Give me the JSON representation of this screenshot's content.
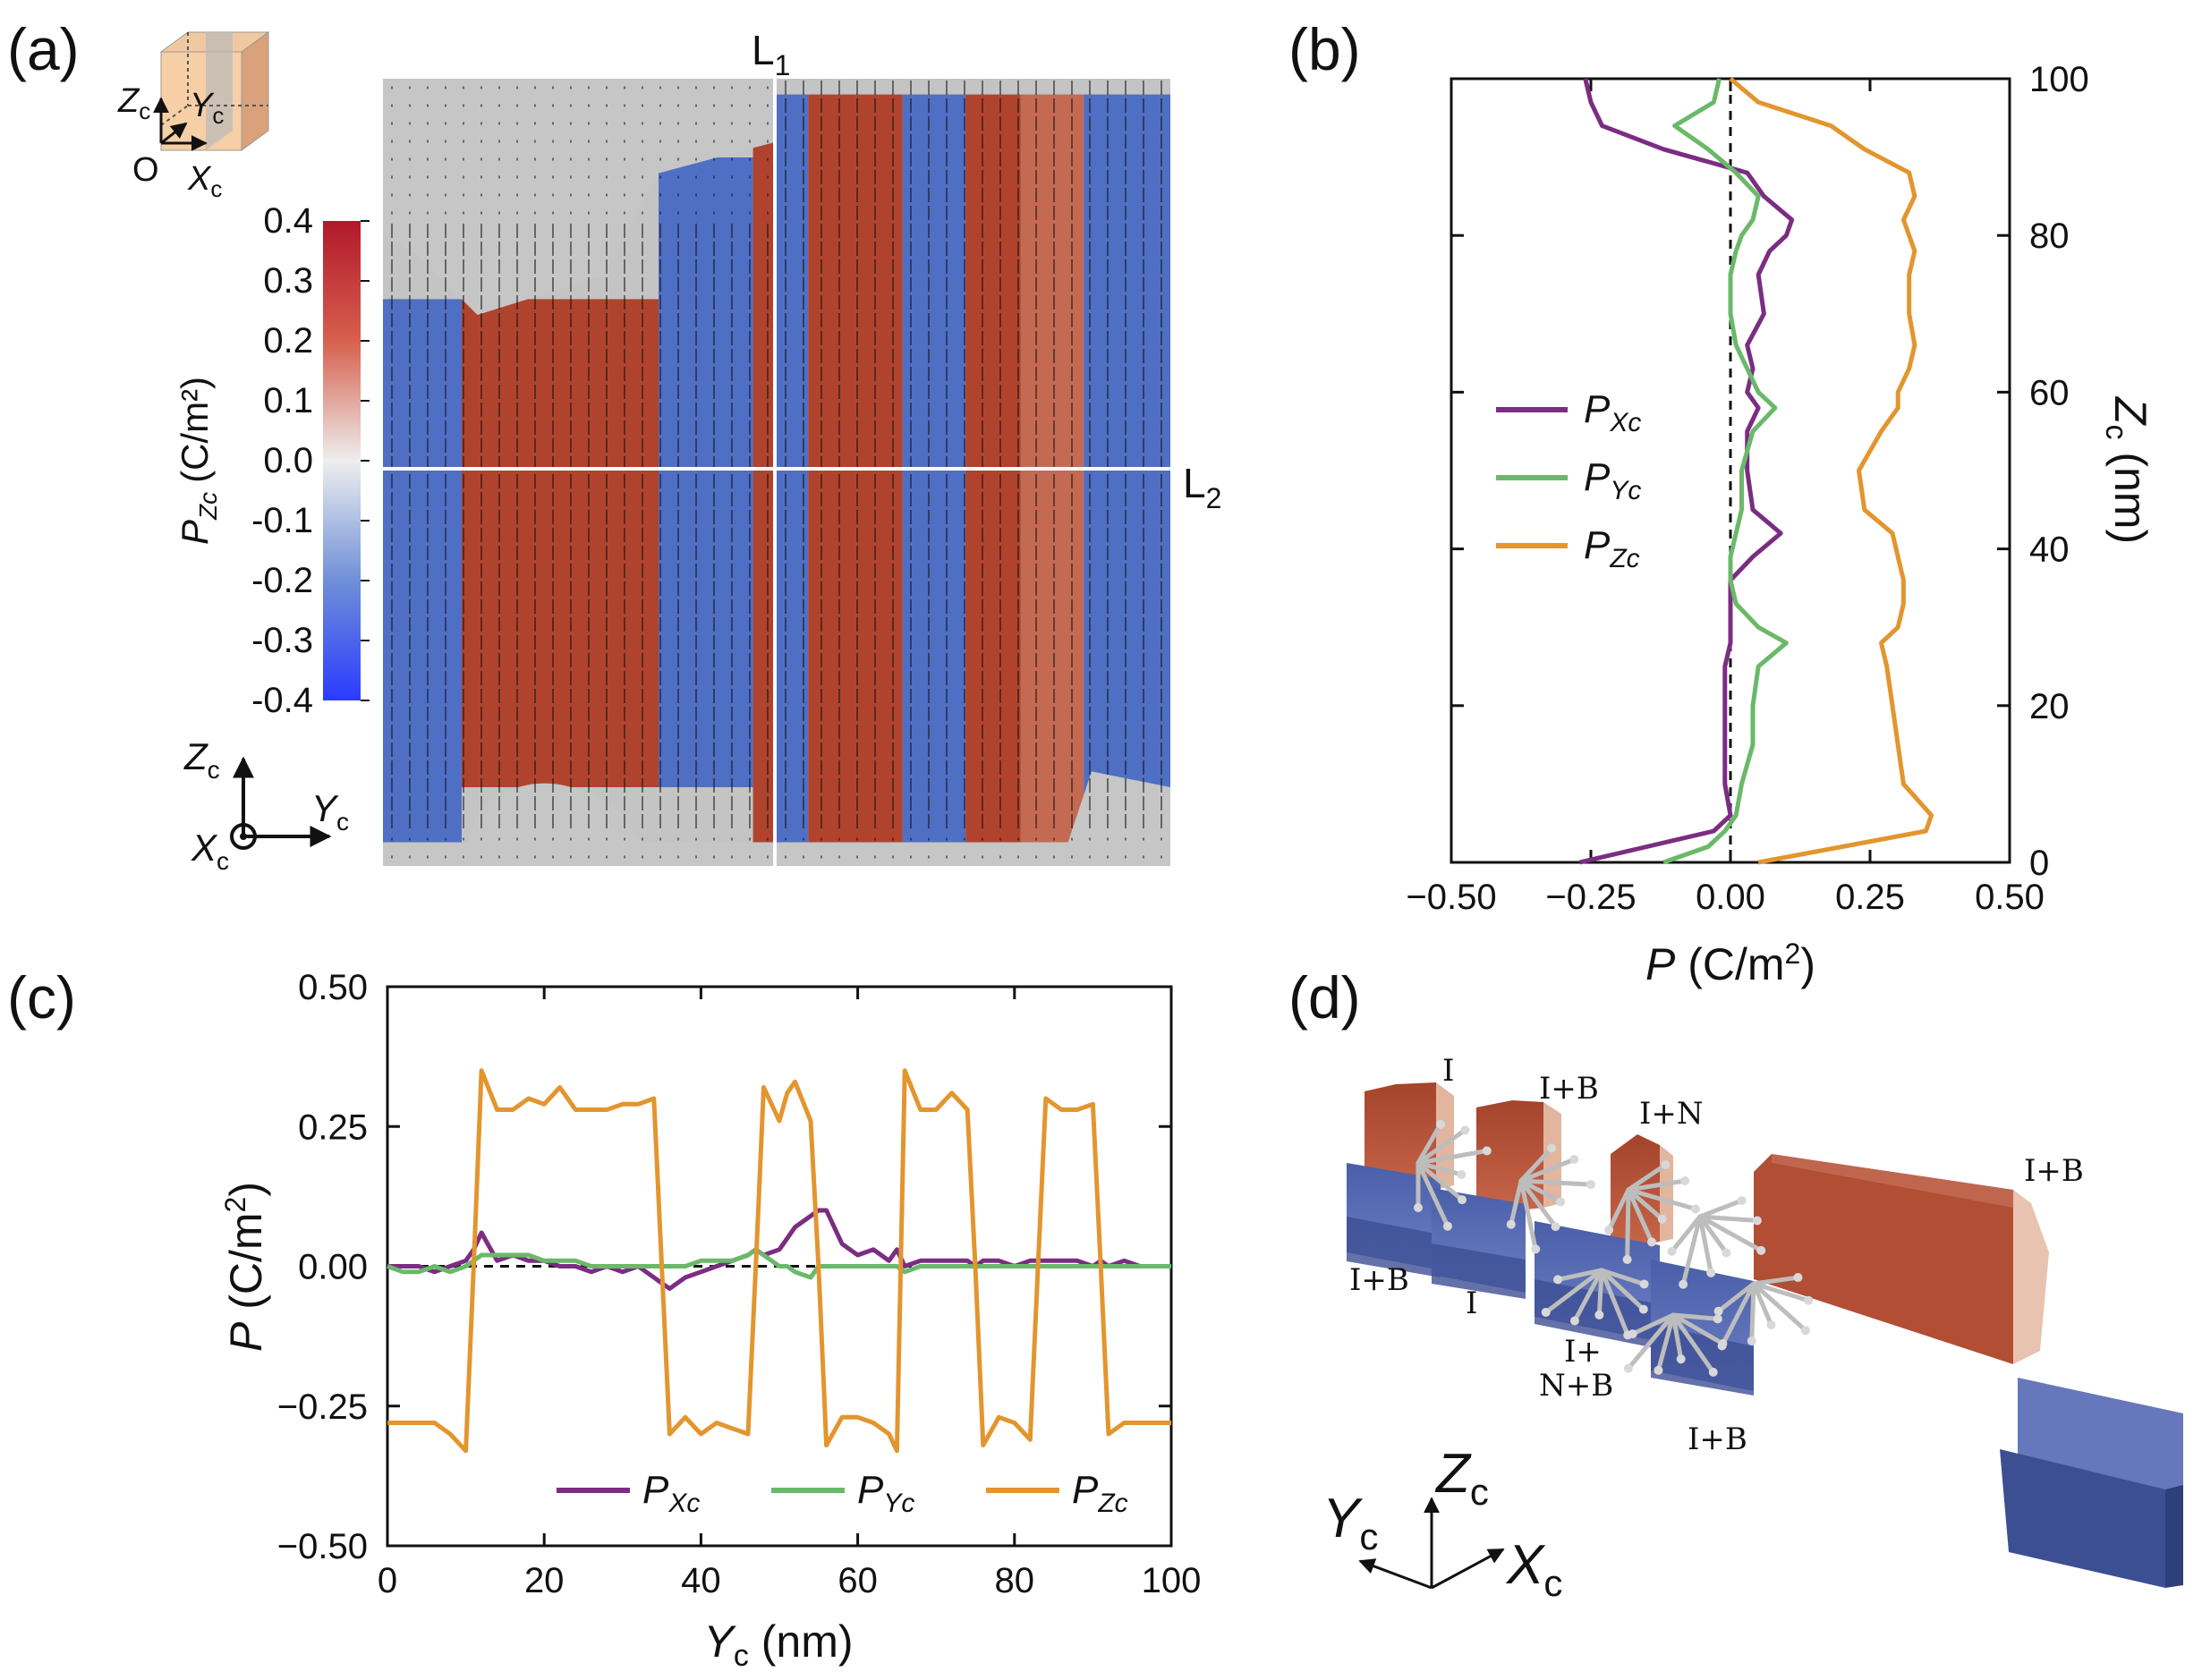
{
  "panels": {
    "a": "(a)",
    "b": "(b)",
    "c": "(c)",
    "d": "(d)"
  },
  "colors": {
    "px": "#7b2d82",
    "py": "#6ab96a",
    "pz": "#e3952e",
    "red": "#b0432d",
    "blue": "#4f6fc4",
    "gray": "#c6c6c6"
  },
  "panel_a": {
    "line1": "L",
    "line1_sub": "1",
    "line2": "L",
    "line2_sub": "2",
    "colorbar": {
      "label": "P",
      "label_sub": "Zc",
      "label_unit": "(C/m²)",
      "ticks": [
        "0.4",
        "0.3",
        "0.2",
        "0.1",
        "0.0",
        "-0.1",
        "-0.2",
        "-0.3",
        "-0.4"
      ],
      "range": [
        -0.4,
        0.4
      ]
    },
    "inset_axes": {
      "z": "Z",
      "y": "Y",
      "x": "X",
      "sub": "c",
      "origin": "O"
    },
    "bottom_axes": {
      "z": "Z",
      "y": "Y",
      "x": "X",
      "sub": "c"
    },
    "stripes_nm": [
      {
        "from": 0,
        "to": 10,
        "sign": -1
      },
      {
        "from": 10,
        "to": 35,
        "sign": 1
      },
      {
        "from": 35,
        "to": 47,
        "sign": -1
      },
      {
        "from": 47,
        "to": 50,
        "sign": 1
      },
      {
        "from": 50,
        "to": 54,
        "sign": -1
      },
      {
        "from": 54,
        "to": 66,
        "sign": 1
      },
      {
        "from": 66,
        "to": 74,
        "sign": -1
      },
      {
        "from": 74,
        "to": 81,
        "sign": 1
      },
      {
        "from": 81,
        "to": 89,
        "sign": 0.6
      },
      {
        "from": 89,
        "to": 100,
        "sign": -1
      }
    ]
  },
  "chart_data": [
    {
      "id": "b",
      "type": "line",
      "xlabel": "P (C/m²)",
      "ylabel": "Zc (nm)",
      "xlim": [
        -0.5,
        0.5
      ],
      "ylim": [
        0,
        100
      ],
      "xticks": [
        "−0.50",
        "−0.25",
        "0.00",
        "0.25",
        "0.50"
      ],
      "yticks": [
        "0",
        "20",
        "40",
        "60",
        "80",
        "100"
      ],
      "reference_line": "x = 0 dashed",
      "y": [
        0,
        2,
        4,
        6,
        10,
        15,
        20,
        25,
        28,
        30,
        33,
        36,
        39,
        42,
        45,
        50,
        55,
        58,
        60,
        63,
        66,
        70,
        75,
        78,
        80,
        82,
        85,
        88,
        91,
        94,
        97,
        100
      ],
      "series": [
        {
          "name": "PXc",
          "label": "P",
          "sub": "Xc",
          "values": [
            -0.27,
            -0.15,
            -0.03,
            0.0,
            -0.01,
            -0.01,
            -0.01,
            -0.01,
            0.0,
            0.0,
            0.0,
            0.0,
            0.04,
            0.09,
            0.04,
            0.03,
            0.03,
            0.05,
            0.03,
            0.04,
            0.03,
            0.06,
            0.05,
            0.07,
            0.1,
            0.11,
            0.06,
            0.03,
            -0.12,
            -0.23,
            -0.25,
            -0.26
          ]
        },
        {
          "name": "PYc",
          "label": "P",
          "sub": "Yc",
          "values": [
            -0.12,
            -0.04,
            -0.01,
            0.01,
            0.02,
            0.04,
            0.04,
            0.05,
            0.1,
            0.05,
            0.01,
            0.0,
            0.0,
            0.01,
            0.02,
            0.02,
            0.04,
            0.08,
            0.05,
            0.03,
            0.01,
            0.0,
            0.0,
            0.01,
            0.02,
            0.04,
            0.05,
            0.01,
            -0.04,
            -0.1,
            -0.03,
            -0.02
          ]
        },
        {
          "name": "PZc",
          "label": "P",
          "sub": "Zc",
          "values": [
            0.05,
            0.2,
            0.35,
            0.36,
            0.31,
            0.3,
            0.29,
            0.28,
            0.27,
            0.3,
            0.31,
            0.31,
            0.3,
            0.29,
            0.24,
            0.23,
            0.27,
            0.3,
            0.3,
            0.32,
            0.33,
            0.32,
            0.32,
            0.33,
            0.32,
            0.31,
            0.33,
            0.32,
            0.24,
            0.18,
            0.05,
            0.0
          ]
        }
      ]
    },
    {
      "id": "c",
      "type": "line",
      "xlabel": "Yc (nm)",
      "ylabel": "P (C/m²)",
      "xlim": [
        0,
        100
      ],
      "ylim": [
        -0.5,
        0.5
      ],
      "xticks": [
        "0",
        "20",
        "40",
        "60",
        "80",
        "100"
      ],
      "yticks": [
        "0.50",
        "0.25",
        "0.00",
        "−0.25",
        "−0.50"
      ],
      "reference_line": "y = 0 dashed",
      "x": [
        0,
        2,
        4,
        6,
        8,
        10,
        11,
        12,
        14,
        16,
        18,
        20,
        22,
        24,
        26,
        28,
        30,
        32,
        34,
        35,
        36,
        38,
        40,
        42,
        44,
        46,
        47,
        48,
        50,
        51,
        52,
        54,
        55,
        56,
        58,
        60,
        62,
        64,
        65,
        66,
        68,
        70,
        72,
        74,
        75,
        76,
        78,
        80,
        82,
        83,
        84,
        86,
        88,
        90,
        91,
        92,
        94,
        96,
        98,
        100
      ],
      "series": [
        {
          "name": "PXc",
          "label": "P",
          "sub": "Xc",
          "values": [
            0.0,
            0.0,
            0.0,
            -0.01,
            0.0,
            0.01,
            0.03,
            0.06,
            0.01,
            0.02,
            0.01,
            0.01,
            0.0,
            0.0,
            -0.01,
            0.0,
            -0.01,
            0.0,
            -0.02,
            -0.03,
            -0.04,
            -0.02,
            -0.01,
            0.0,
            0.01,
            0.02,
            0.03,
            0.02,
            0.03,
            0.05,
            0.07,
            0.09,
            0.1,
            0.1,
            0.04,
            0.02,
            0.03,
            0.01,
            0.03,
            0.0,
            0.01,
            0.01,
            0.01,
            0.01,
            0.0,
            0.01,
            0.01,
            0.0,
            0.01,
            0.01,
            0.01,
            0.01,
            0.01,
            0.0,
            0.01,
            0.0,
            0.01,
            0.0,
            0.0,
            0.0
          ]
        },
        {
          "name": "PYc",
          "label": "P",
          "sub": "Yc",
          "values": [
            0.0,
            -0.01,
            -0.01,
            0.0,
            -0.01,
            0.0,
            0.01,
            0.02,
            0.02,
            0.02,
            0.02,
            0.01,
            0.01,
            0.01,
            0.0,
            0.0,
            0.0,
            0.0,
            0.0,
            0.0,
            0.0,
            0.0,
            0.01,
            0.01,
            0.01,
            0.02,
            0.03,
            0.02,
            0.0,
            0.0,
            -0.01,
            -0.02,
            0.0,
            0.0,
            0.0,
            0.0,
            0.0,
            0.0,
            0.0,
            -0.01,
            0.0,
            0.0,
            0.0,
            0.0,
            0.0,
            0.0,
            0.0,
            0.0,
            0.0,
            0.0,
            0.0,
            0.0,
            0.0,
            0.0,
            0.0,
            0.0,
            0.0,
            0.0,
            0.0,
            0.0
          ]
        },
        {
          "name": "PZc",
          "label": "P",
          "sub": "Zc",
          "values": [
            -0.28,
            -0.28,
            -0.28,
            -0.28,
            -0.3,
            -0.33,
            0.0,
            0.35,
            0.28,
            0.28,
            0.3,
            0.29,
            0.32,
            0.28,
            0.28,
            0.28,
            0.29,
            0.29,
            0.3,
            0.0,
            -0.3,
            -0.27,
            -0.3,
            -0.28,
            -0.29,
            -0.3,
            0.0,
            0.32,
            0.26,
            0.31,
            0.33,
            0.26,
            0.0,
            -0.32,
            -0.27,
            -0.27,
            -0.28,
            -0.3,
            -0.33,
            0.35,
            0.28,
            0.28,
            0.31,
            0.28,
            0.0,
            -0.32,
            -0.27,
            -0.28,
            -0.31,
            0.0,
            0.3,
            0.28,
            0.28,
            0.29,
            0.0,
            -0.3,
            -0.28,
            -0.28,
            -0.28,
            -0.28
          ]
        }
      ]
    }
  ],
  "panel_d": {
    "labels": [
      "I",
      "I+B",
      "I+N",
      "I+B",
      "I+B",
      "I",
      "I+",
      "N+B",
      "I+B"
    ],
    "axes": {
      "z": "Z",
      "y": "Y",
      "x": "X",
      "sub": "c"
    }
  }
}
